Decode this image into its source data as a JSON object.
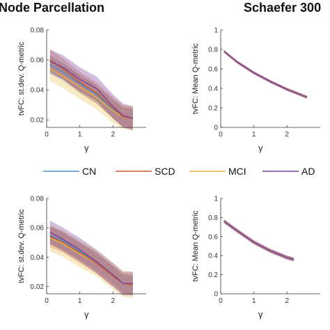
{
  "headers": {
    "left": "Node Parcellation",
    "right": "Schaefer 300"
  },
  "legend": [
    "CN",
    "SCD",
    "MCI",
    "AD"
  ],
  "colors": {
    "CN": "#4a8cc4",
    "SCD": "#c8582c",
    "MCI": "#e8b83c",
    "AD": "#7e3f98"
  },
  "chart_data": [
    {
      "type": "line",
      "ylabel": "tvFC: st.dev. Q-metric",
      "xlabel": "γ",
      "xlim": [
        0,
        3
      ],
      "ylim": [
        0.015,
        0.08
      ],
      "xticks": [
        0,
        1,
        2
      ],
      "xtick_labels": [
        "0",
        "1",
        "2"
      ],
      "yticks": [
        0.02,
        0.04,
        0.06,
        0.08
      ],
      "ytick_labels": [
        "0.02",
        "0.04",
        "0.06",
        "0.08"
      ],
      "x": [
        0.1,
        0.5,
        1.0,
        1.5,
        2.0,
        2.3,
        2.6
      ],
      "series": [
        {
          "name": "CN",
          "values": [
            0.057,
            0.052,
            0.044,
            0.037,
            0.027,
            0.022,
            0.021
          ],
          "band": 0.006
        },
        {
          "name": "SCD",
          "values": [
            0.06,
            0.054,
            0.045,
            0.038,
            0.028,
            0.022,
            0.021
          ],
          "band": 0.007
        },
        {
          "name": "MCI",
          "values": [
            0.054,
            0.049,
            0.042,
            0.035,
            0.026,
            0.022,
            0.021
          ],
          "band": 0.008
        },
        {
          "name": "AD",
          "values": [
            0.059,
            0.055,
            0.047,
            0.041,
            0.029,
            0.023,
            0.021
          ],
          "band": 0.008
        }
      ]
    },
    {
      "type": "line",
      "ylabel": "tvFC: Mean Q-metric",
      "xlabel": "γ",
      "xlim": [
        0,
        3
      ],
      "ylim": [
        0,
        1
      ],
      "xticks": [
        0,
        1,
        2
      ],
      "xtick_labels": [
        "0",
        "1",
        "2"
      ],
      "yticks": [
        0,
        0.2,
        0.4,
        0.6,
        0.8,
        1
      ],
      "ytick_labels": [
        "0",
        "0.2",
        "0.4",
        "0.6",
        "0.8",
        "1"
      ],
      "x": [
        0.1,
        0.5,
        1.0,
        1.5,
        2.0,
        2.3,
        2.6
      ],
      "series": [
        {
          "name": "CN",
          "values": [
            0.78,
            0.67,
            0.56,
            0.47,
            0.39,
            0.35,
            0.31
          ],
          "band": 0.015
        },
        {
          "name": "SCD",
          "values": [
            0.78,
            0.67,
            0.56,
            0.47,
            0.39,
            0.35,
            0.31
          ],
          "band": 0.015
        },
        {
          "name": "MCI",
          "values": [
            0.78,
            0.67,
            0.56,
            0.47,
            0.39,
            0.35,
            0.31
          ],
          "band": 0.015
        },
        {
          "name": "AD",
          "values": [
            0.78,
            0.67,
            0.56,
            0.47,
            0.39,
            0.35,
            0.31
          ],
          "band": 0.015
        }
      ]
    },
    {
      "type": "line",
      "ylabel": "tvFC: st.dev. Q-metric",
      "xlabel": "γ",
      "xlim": [
        0,
        3
      ],
      "ylim": [
        0.015,
        0.08
      ],
      "xticks": [
        0,
        1,
        2
      ],
      "xtick_labels": [
        "0",
        "1",
        "2"
      ],
      "yticks": [
        0.02,
        0.04,
        0.06,
        0.08
      ],
      "ytick_labels": [
        "0.02",
        "0.04",
        "0.06",
        "0.08"
      ],
      "x": [
        0.1,
        0.5,
        1.0,
        1.5,
        2.0,
        2.3,
        2.6
      ],
      "series": [
        {
          "name": "CN",
          "values": [
            0.055,
            0.051,
            0.044,
            0.037,
            0.028,
            0.022,
            0.021
          ],
          "band": 0.006
        },
        {
          "name": "SCD",
          "values": [
            0.054,
            0.05,
            0.043,
            0.036,
            0.027,
            0.022,
            0.021
          ],
          "band": 0.007
        },
        {
          "name": "MCI",
          "values": [
            0.053,
            0.049,
            0.042,
            0.036,
            0.027,
            0.022,
            0.021
          ],
          "band": 0.009
        },
        {
          "name": "AD",
          "values": [
            0.057,
            0.052,
            0.045,
            0.037,
            0.028,
            0.022,
            0.022
          ],
          "band": 0.008
        }
      ]
    },
    {
      "type": "line",
      "ylabel": "tvFC: Mean Q-metric",
      "xlabel": "γ",
      "xlim": [
        0,
        3
      ],
      "ylim": [
        0,
        1
      ],
      "xticks": [
        0,
        1,
        2
      ],
      "xtick_labels": [
        "0",
        "1",
        "2"
      ],
      "yticks": [
        0,
        0.2,
        0.4,
        0.6,
        0.8,
        1
      ],
      "ytick_labels": [
        "0",
        "0.2",
        "0.4",
        "0.6",
        "0.8",
        "1"
      ],
      "x": [
        0.1,
        0.5,
        1.0,
        1.5,
        2.0,
        2.2
      ],
      "series": [
        {
          "name": "CN",
          "values": [
            0.76,
            0.66,
            0.54,
            0.45,
            0.38,
            0.36
          ],
          "band": 0.02
        },
        {
          "name": "SCD",
          "values": [
            0.76,
            0.66,
            0.54,
            0.45,
            0.38,
            0.36
          ],
          "band": 0.02
        },
        {
          "name": "MCI",
          "values": [
            0.76,
            0.66,
            0.54,
            0.45,
            0.38,
            0.36
          ],
          "band": 0.02
        },
        {
          "name": "AD",
          "values": [
            0.76,
            0.66,
            0.54,
            0.45,
            0.38,
            0.36
          ],
          "band": 0.02
        }
      ]
    }
  ]
}
